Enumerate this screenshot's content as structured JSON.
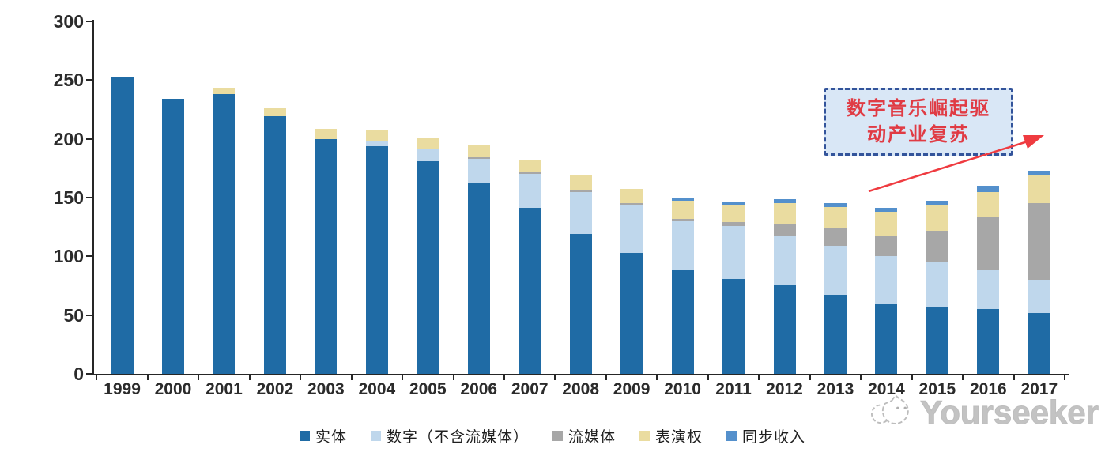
{
  "chart_data": {
    "type": "bar",
    "stacked": true,
    "title": "",
    "xlabel": "",
    "ylabel": "",
    "ylim": [
      0,
      300
    ],
    "yticks": [
      0,
      50,
      100,
      150,
      200,
      250,
      300
    ],
    "grid": false,
    "legend_position": "bottom",
    "categories": [
      "1999",
      "2000",
      "2001",
      "2002",
      "2003",
      "2004",
      "2005",
      "2006",
      "2007",
      "2008",
      "2009",
      "2010",
      "2011",
      "2012",
      "2013",
      "2014",
      "2015",
      "2016",
      "2017"
    ],
    "series": [
      {
        "key": "physical",
        "name": "实体",
        "color": "#1F6BA5",
        "values": [
          252,
          234,
          238,
          219,
          200,
          194,
          181,
          163,
          141,
          119,
          103,
          89,
          81,
          76,
          67,
          60,
          57,
          55,
          52
        ]
      },
      {
        "key": "digital-ex-streaming",
        "name": "数字（不含流媒体）",
        "color": "#BFD7EC",
        "values": [
          0,
          0,
          0,
          0,
          0,
          4,
          11,
          20,
          29,
          36,
          40,
          41,
          45,
          42,
          42,
          40,
          38,
          33,
          28
        ]
      },
      {
        "key": "streaming",
        "name": "流媒体",
        "color": "#A7A7A7",
        "values": [
          0,
          0,
          0,
          0,
          0,
          0,
          0,
          1.5,
          1.5,
          1.5,
          2,
          2,
          3,
          10,
          15,
          18,
          27,
          46,
          65
        ]
      },
      {
        "key": "performance-rights",
        "name": "表演权",
        "color": "#EADCA0",
        "values": [
          0,
          0,
          5.5,
          7,
          8.5,
          10,
          8.5,
          10,
          10,
          12,
          12.5,
          15,
          15,
          17,
          18,
          20,
          21,
          21,
          24
        ]
      },
      {
        "key": "sync-revenue",
        "name": "同步收入",
        "color": "#5490CC",
        "values": [
          0,
          0,
          0,
          0,
          0,
          0,
          0,
          0,
          0,
          0,
          0,
          3,
          2.5,
          3.5,
          3.5,
          3,
          4,
          5,
          4
        ]
      }
    ],
    "axis_color": "#262626",
    "tick_label_color": "#2b2b2b"
  },
  "annotation": {
    "text": "数字音乐崛起驱动产业复苏",
    "lines": [
      "数字音乐崛起驱",
      "动产业复苏"
    ],
    "text_color": "#E03B44",
    "border_color": "#33549B",
    "fill_color": "#D9E7F6",
    "arrow_color": "#EF3B40"
  },
  "watermark": {
    "text": "Yourseeker",
    "color": "#c3c3c3"
  }
}
